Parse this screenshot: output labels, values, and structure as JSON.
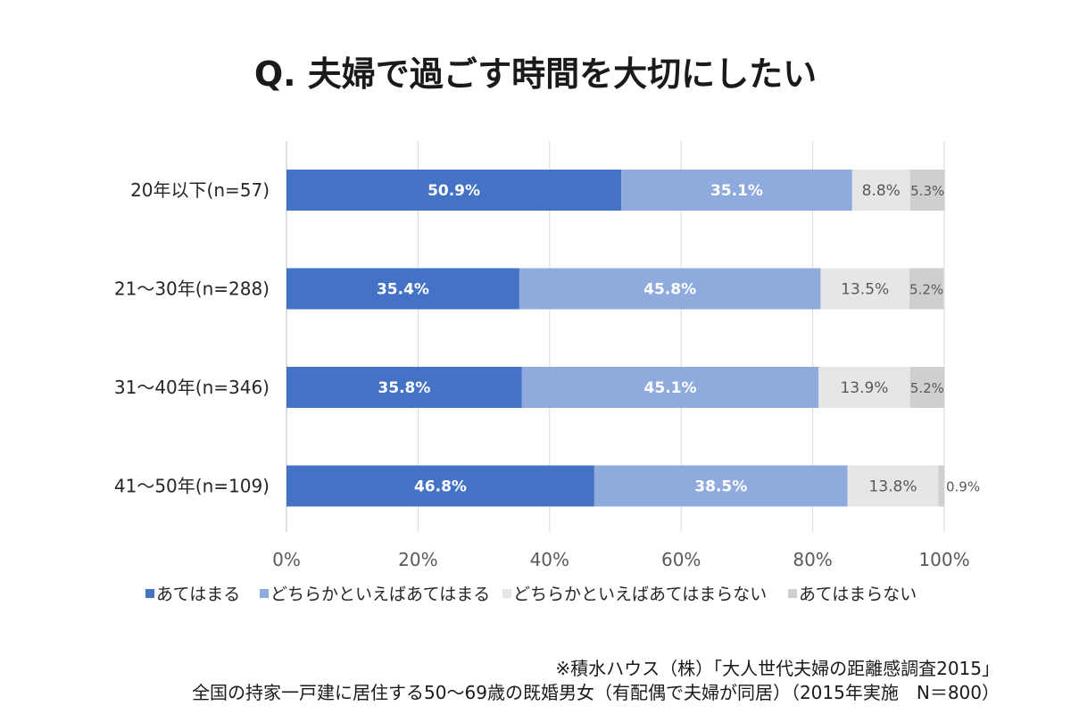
{
  "title": "Q. 夫婦で過ごす時間を大切にしたい",
  "source": {
    "line1": "※積水ハウス（株）「大人世代夫婦の距離感調査2015」",
    "line2": "全国の持家一戸建に居住する50～69歳の既婚男女（有配偶で夫婦が同居）（2015年実施　N＝800）"
  },
  "chart_data": {
    "type": "bar",
    "orientation": "horizontal",
    "stacked": true,
    "percent": true,
    "title": "Q. 夫婦で過ごす時間を大切にしたい",
    "categories": [
      "20年以下(n=57)",
      "21～30年(n=288)",
      "31～40年(n=346)",
      "41～50年(n=109)"
    ],
    "series": [
      {
        "name": "あてはまる",
        "values": [
          50.9,
          35.4,
          35.8,
          46.8
        ],
        "color": "#4472c4",
        "label_color": "#ffffff"
      },
      {
        "name": "どちらかといえばあてはまる",
        "values": [
          35.1,
          45.8,
          45.1,
          38.5
        ],
        "color": "#8faadc",
        "label_color": "#ffffff"
      },
      {
        "name": "どちらかといえばあてはまらない",
        "values": [
          8.8,
          13.5,
          13.9,
          13.8
        ],
        "color": "#e7e6e6",
        "label_color": "#595959"
      },
      {
        "name": "あてはまらない",
        "values": [
          5.3,
          5.2,
          5.2,
          0.9
        ],
        "color": "#cfcfcf",
        "label_color": "#595959"
      }
    ],
    "data_labels": [
      [
        "50.9%",
        "35.1%",
        "8.8%",
        "5.3%"
      ],
      [
        "35.4%",
        "45.8%",
        "13.5%",
        "5.2%"
      ],
      [
        "35.8%",
        "45.1%",
        "13.9%",
        "5.2%"
      ],
      [
        "46.8%",
        "38.5%",
        "13.8%",
        "0.9%"
      ]
    ],
    "xlim": [
      0,
      100
    ],
    "x_ticks": [
      "0%",
      "20%",
      "40%",
      "60%",
      "80%",
      "100%"
    ],
    "grid": true,
    "legend_position": "bottom"
  }
}
